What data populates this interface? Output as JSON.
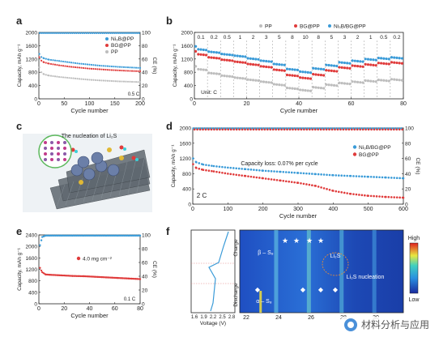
{
  "panels": {
    "a": "a",
    "b": "b",
    "c": "c",
    "d": "d",
    "e": "e",
    "f": "f"
  },
  "chart_data": [
    {
      "id": "a",
      "type": "scatter",
      "xlabel": "Cycle number",
      "ylabel": "Capacity, mAh g⁻¹",
      "y2label": "CE (%)",
      "xlim": [
        0,
        200
      ],
      "ylim": [
        0,
        2000
      ],
      "y2lim": [
        0,
        100
      ],
      "xticks": [
        "0",
        "50",
        "100",
        "150",
        "200"
      ],
      "yticks": [
        "0",
        "400",
        "800",
        "1200",
        "1600",
        "2000"
      ],
      "y2ticks": [
        "0",
        "20",
        "40",
        "60",
        "80",
        "100"
      ],
      "annotation": "0.5 C",
      "legend": [
        "Ni₃B@PP",
        "BG@PP",
        "PP"
      ],
      "series": [
        {
          "name": "Ni₃B@PP",
          "color": "#3a9bd8",
          "x": [
            1,
            5,
            10,
            20,
            40,
            60,
            80,
            100,
            120,
            140,
            160,
            180,
            200
          ],
          "values": [
            1350,
            1260,
            1220,
            1180,
            1140,
            1100,
            1060,
            1030,
            1000,
            980,
            960,
            945,
            930
          ]
        },
        {
          "name": "BG@PP",
          "color": "#e03b3b",
          "x": [
            1,
            5,
            10,
            20,
            40,
            60,
            80,
            100,
            120,
            140,
            160,
            180,
            200
          ],
          "values": [
            1250,
            1150,
            1100,
            1060,
            1010,
            970,
            940,
            910,
            890,
            870,
            855,
            840,
            830
          ]
        },
        {
          "name": "PP",
          "color": "#bdbdbd",
          "x": [
            1,
            5,
            10,
            20,
            40,
            60,
            80,
            100,
            120,
            140,
            160,
            180,
            200
          ],
          "values": [
            950,
            800,
            740,
            700,
            660,
            630,
            600,
            575,
            555,
            540,
            525,
            515,
            505
          ]
        }
      ],
      "ce_color": "#3a9bd8",
      "ce_value": 99
    },
    {
      "id": "b",
      "type": "scatter",
      "xlabel": "Cycle number",
      "ylabel": "Capacity, mAh g⁻¹",
      "xlim": [
        0,
        80
      ],
      "ylim": [
        0,
        2000
      ],
      "xticks": [
        "0",
        "20",
        "40",
        "60",
        "80"
      ],
      "yticks": [
        "0",
        "400",
        "800",
        "1200",
        "1600",
        "2000"
      ],
      "rate_labels": [
        "0.1",
        "0.2",
        "0.5",
        "1",
        "2",
        "3",
        "5",
        "8",
        "10",
        "8",
        "5",
        "3",
        "2",
        "1",
        "0.5",
        "0.2"
      ],
      "unit": "Unit: C",
      "legend": [
        "PP",
        "BG@PP",
        "Ni₃B/BG@PP"
      ],
      "series": [
        {
          "name": "Ni₃B/BG@PP",
          "color": "#3a9bd8",
          "values": [
            1500,
            1420,
            1350,
            1300,
            1220,
            1150,
            1050,
            900,
            820,
            920,
            1020,
            1100,
            1150,
            1200,
            1230,
            1250
          ]
        },
        {
          "name": "BG@PP",
          "color": "#e03b3b",
          "values": [
            1350,
            1250,
            1180,
            1120,
            1050,
            980,
            880,
            720,
            640,
            740,
            860,
            950,
            1000,
            1040,
            1080,
            1100
          ]
        },
        {
          "name": "PP",
          "color": "#bdbdbd",
          "values": [
            900,
            780,
            700,
            640,
            580,
            520,
            440,
            330,
            270,
            350,
            430,
            480,
            520,
            550,
            570,
            590
          ]
        }
      ]
    },
    {
      "id": "d",
      "type": "scatter",
      "xlabel": "Cycle number",
      "ylabel": "Capacity, mAh g⁻¹",
      "y2label": "CE (%)",
      "xlim": [
        0,
        600
      ],
      "ylim": [
        0,
        2000
      ],
      "y2lim": [
        0,
        100
      ],
      "xticks": [
        "0",
        "100",
        "200",
        "300",
        "400",
        "500",
        "600"
      ],
      "yticks": [
        "0",
        "400",
        "800",
        "1200",
        "1600",
        "2000"
      ],
      "y2ticks": [
        "0",
        "20",
        "40",
        "60",
        "80",
        "100"
      ],
      "annotation": "Capacity loss: 0.07% per cycle",
      "rate": "2 C",
      "legend": [
        "Ni₃B/BG@PP",
        "BG@PP"
      ],
      "series": [
        {
          "name": "Ni₃B/BG@PP",
          "color": "#3a9bd8",
          "x": [
            1,
            10,
            30,
            60,
            100,
            150,
            200,
            250,
            300,
            350,
            400,
            450,
            500,
            550,
            600
          ],
          "values": [
            1200,
            1100,
            1040,
            1000,
            960,
            920,
            880,
            850,
            820,
            790,
            760,
            740,
            720,
            700,
            680
          ]
        },
        {
          "name": "BG@PP",
          "color": "#e03b3b",
          "x": [
            1,
            10,
            30,
            60,
            100,
            150,
            200,
            250,
            300,
            350,
            400,
            450,
            500,
            550,
            600
          ],
          "values": [
            1050,
            950,
            900,
            860,
            800,
            740,
            680,
            620,
            560,
            480,
            350,
            270,
            220,
            190,
            170
          ]
        }
      ]
    },
    {
      "id": "e",
      "type": "scatter",
      "xlabel": "Cycle number",
      "ylabel": "Capacity, mAh g⁻¹",
      "y2label": "CE (%)",
      "xlim": [
        0,
        90
      ],
      "ylim": [
        0,
        2400
      ],
      "y2lim": [
        0,
        100
      ],
      "xticks": [
        "0",
        "20",
        "40",
        "60",
        "80"
      ],
      "yticks": [
        "0",
        "400",
        "800",
        "1200",
        "1600",
        "2000",
        "2400"
      ],
      "y2ticks": [
        "0",
        "20",
        "40",
        "60",
        "80",
        "100"
      ],
      "annotation": "4.0 mg cm⁻²",
      "rate": "0.1 C",
      "series": [
        {
          "name": "Capacity",
          "color": "#e03b3b",
          "x": [
            1,
            3,
            6,
            10,
            20,
            30,
            40,
            50,
            60,
            70,
            80,
            90
          ],
          "values": [
            1250,
            1100,
            1020,
            1010,
            990,
            970,
            960,
            940,
            920,
            900,
            880,
            860
          ]
        },
        {
          "name": "CE",
          "color": "#3a9bd8",
          "axis": "y2",
          "x": [
            1,
            3,
            6,
            10,
            20,
            30,
            40,
            50,
            60,
            70,
            80,
            90
          ],
          "values": [
            85,
            97,
            99,
            99,
            99,
            99,
            99,
            99,
            99,
            99,
            99,
            99
          ]
        }
      ]
    },
    {
      "id": "f",
      "type": "heatmap",
      "xlabel": "Voltage (V)",
      "xticks": [
        "1.6",
        "1.9",
        "2.2",
        "2.5",
        "2.8"
      ],
      "twotheta_ticks": [
        "22",
        "24",
        "26",
        "28",
        "30"
      ],
      "labels": {
        "charge": "Charge",
        "discharge": "Discharge",
        "beta": "β – S₈",
        "alpha": "α – S₈",
        "li2s": "Li₂S",
        "nucleation": "Li₂S nucleation",
        "high": "High",
        "low": "Low"
      }
    }
  ],
  "c": {
    "title": "The nucleation of Li₂S"
  },
  "watermark": "材料分析与应用"
}
